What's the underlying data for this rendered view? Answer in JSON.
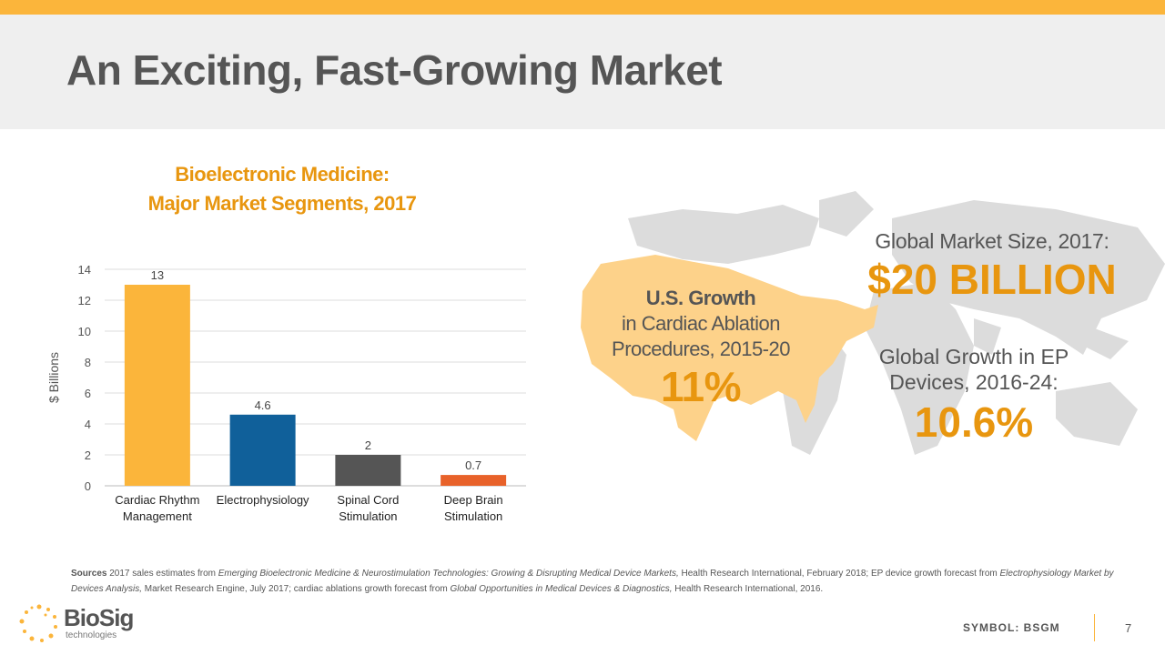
{
  "header": {
    "title": "An Exciting, Fast-Growing Market"
  },
  "chart_data": {
    "type": "bar",
    "title": "Bioelectronic Medicine: Major Market Segments, 2017",
    "title_lines": [
      "Bioelectronic Medicine:",
      "Major Market Segments, 2017"
    ],
    "categories": [
      [
        "Cardiac Rhythm",
        "Management"
      ],
      [
        "Electrophysiology"
      ],
      [
        "Spinal Cord",
        "Stimulation"
      ],
      [
        "Deep Brain",
        "Stimulation"
      ]
    ],
    "values": [
      13,
      4.6,
      2,
      0.7
    ],
    "data_labels": [
      "13",
      "4.6",
      "2",
      "0.7"
    ],
    "colors": [
      "#FBB53B",
      "#10609A",
      "#555555",
      "#E8622A"
    ],
    "xlabel": "",
    "ylabel": "$ Billions",
    "ylim": [
      0,
      14
    ],
    "yticks": [
      0,
      2,
      4,
      6,
      8,
      10,
      12,
      14
    ],
    "grid": true
  },
  "callouts": {
    "us": {
      "line1": "U.S. Growth",
      "line2": "in Cardiac Ablation",
      "line3": "Procedures, 2015-20",
      "value": "11%"
    },
    "global_size": {
      "label": "Global Market Size, 2017:",
      "value": "$20 BILLION"
    },
    "ep": {
      "line1": "Global Growth in EP",
      "line2": "Devices, 2016-24:",
      "value": "10.6%"
    }
  },
  "sources": {
    "label": "Sources",
    "text1": " 2017 sales estimates from ",
    "i1": "Emerging Bioelectronic Medicine & Neurostimulation Technologies: Growing & Disrupting Medical Device Markets,",
    "text2": " Health Research International, February 2018; EP device growth forecast from ",
    "i2": "Electrophysiology Market by Devices Analysis,",
    "text3": " Market Research Engine, July 2017; cardiac ablations growth forecast from ",
    "i3": "Global Opportunities in Medical Devices & Diagnostics,",
    "text4": " Health Research International, 2016."
  },
  "footer": {
    "symbol": "SYMBOL: BSGM",
    "page": "7",
    "logo_name": "BioSig",
    "logo_sub": "technologies"
  },
  "colors": {
    "accent": "#FBB53B",
    "orange_text": "#E8960F",
    "gray_text": "#555555"
  }
}
